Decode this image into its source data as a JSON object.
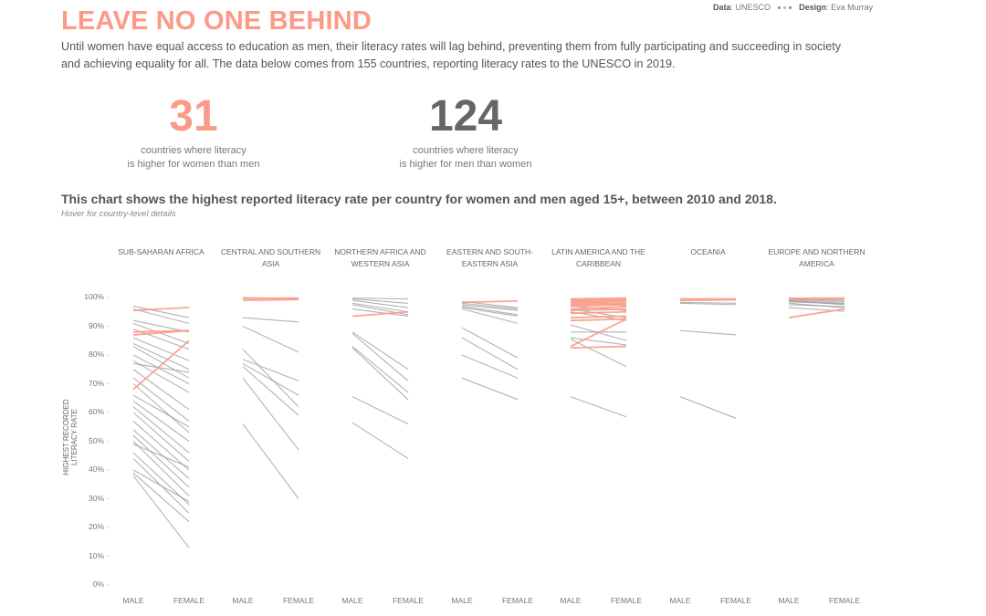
{
  "header": {
    "title": "LEAVE NO ONE BEHIND",
    "credits": {
      "data_label": "Data",
      "data_value": "UNESCO",
      "design_label": "Design",
      "design_value": "Eva Murray"
    },
    "intro_line1": "Until women have equal access to education as men, their literacy rates will lag behind, preventing them from fully participating and succeeding in society",
    "intro_line2": "and achieving equality for all. The data below comes from 155 countries, reporting literacy rates to the UNESCO in 2019."
  },
  "kpis": {
    "women_higher": {
      "value": "31",
      "label_line1": "countries where literacy",
      "label_line2": "is higher for women than men"
    },
    "men_higher": {
      "value": "124",
      "label_line1": "countries where literacy",
      "label_line2": "is higher for men than women"
    }
  },
  "chart": {
    "title": "This chart shows the highest reported literacy rate per country for women and men aged 15+, between 2010 and 2018.",
    "subtitle": "Hover for country-level details"
  },
  "colors": {
    "women_higher": "#fc9a88",
    "men_higher": "#9a9a9a",
    "title": "#fc9a88",
    "kpi_men": "#666666"
  },
  "chart_data": {
    "type": "line",
    "subtype": "slope",
    "title": "This chart shows the highest reported literacy rate per country for women and men aged 15+, between 2010 and 2018.",
    "subtitle": "Hover for country-level details",
    "xlabel": "",
    "ylabel": "HIGHEST RECORDED LITERACY RATE",
    "ylim": [
      0,
      100
    ],
    "yticks": [
      "100%",
      "90%",
      "80%",
      "70%",
      "60%",
      "50%",
      "40%",
      "30%",
      "20%",
      "10%",
      "0%"
    ],
    "x": [
      "MALE",
      "FEMALE"
    ],
    "grid": false,
    "legend": "none (pink = literacy higher for women, grey = higher for men)",
    "panels": [
      {
        "region": "SUB-SAHARAN AFRICA",
        "series": [
          {
            "male": 95.5,
            "female": 96.5,
            "women_higher": true
          },
          {
            "male": 88,
            "female": 88.5,
            "women_higher": true
          },
          {
            "male": 87,
            "female": 88.5,
            "women_higher": true
          },
          {
            "male": 68,
            "female": 85,
            "women_higher": true
          },
          {
            "male": 97,
            "female": 93,
            "women_higher": false
          },
          {
            "male": 96,
            "female": 91,
            "women_higher": false
          },
          {
            "male": 92,
            "female": 88,
            "women_higher": false
          },
          {
            "male": 91,
            "female": 84,
            "women_higher": false
          },
          {
            "male": 89,
            "female": 82,
            "women_higher": false
          },
          {
            "male": 86,
            "female": 78,
            "women_higher": false
          },
          {
            "male": 84,
            "female": 75,
            "women_higher": false
          },
          {
            "male": 83,
            "female": 72,
            "women_higher": false
          },
          {
            "male": 80,
            "female": 70,
            "women_higher": false
          },
          {
            "male": 78,
            "female": 67,
            "women_higher": false
          },
          {
            "male": 77,
            "female": 74,
            "women_higher": false
          },
          {
            "male": 75,
            "female": 61,
            "women_higher": false
          },
          {
            "male": 72,
            "female": 57,
            "women_higher": false
          },
          {
            "male": 70,
            "female": 53,
            "women_higher": false
          },
          {
            "male": 66,
            "female": 55,
            "women_higher": false
          },
          {
            "male": 64,
            "female": 50,
            "women_higher": false
          },
          {
            "male": 62,
            "female": 46,
            "women_higher": false
          },
          {
            "male": 60,
            "female": 43,
            "women_higher": false
          },
          {
            "male": 57,
            "female": 40,
            "women_higher": false
          },
          {
            "male": 54,
            "female": 37,
            "women_higher": false
          },
          {
            "male": 52,
            "female": 34,
            "women_higher": false
          },
          {
            "male": 50,
            "female": 31,
            "women_higher": false
          },
          {
            "male": 49,
            "female": 41,
            "women_higher": false
          },
          {
            "male": 46,
            "female": 28,
            "women_higher": false
          },
          {
            "male": 44,
            "female": 25,
            "women_higher": false
          },
          {
            "male": 40,
            "female": 29,
            "women_higher": false
          },
          {
            "male": 39,
            "female": 22,
            "women_higher": false
          },
          {
            "male": 38,
            "female": 13,
            "women_higher": false
          }
        ]
      },
      {
        "region": "CENTRAL AND SOUTHERN ASIA",
        "series": [
          {
            "male": 99.7,
            "female": 99.8,
            "women_higher": true
          },
          {
            "male": 99,
            "female": 99.3,
            "women_higher": true
          },
          {
            "male": 100,
            "female": 99.6,
            "women_higher": false
          },
          {
            "male": 93,
            "female": 91.5,
            "women_higher": false
          },
          {
            "male": 90,
            "female": 81,
            "women_higher": false
          },
          {
            "male": 82,
            "female": 62,
            "women_higher": false
          },
          {
            "male": 78.5,
            "female": 71,
            "women_higher": false
          },
          {
            "male": 77,
            "female": 66,
            "women_higher": false
          },
          {
            "male": 76,
            "female": 59,
            "women_higher": false
          },
          {
            "male": 72,
            "female": 47,
            "women_higher": false
          },
          {
            "male": 56,
            "female": 30,
            "women_higher": false
          }
        ]
      },
      {
        "region": "NORTHERN AFRICA AND WESTERN ASIA",
        "series": [
          {
            "male": 93.5,
            "female": 95,
            "women_higher": true
          },
          {
            "male": 99.8,
            "female": 99.5,
            "women_higher": false
          },
          {
            "male": 99.5,
            "female": 98,
            "women_higher": false
          },
          {
            "male": 99,
            "female": 96.5,
            "women_higher": false
          },
          {
            "male": 98,
            "female": 95,
            "women_higher": false
          },
          {
            "male": 97.5,
            "female": 94,
            "women_higher": false
          },
          {
            "male": 96,
            "female": 93.5,
            "women_higher": false
          },
          {
            "male": 88,
            "female": 75,
            "women_higher": false
          },
          {
            "male": 87.5,
            "female": 71,
            "women_higher": false
          },
          {
            "male": 83,
            "female": 67,
            "women_higher": false
          },
          {
            "male": 82.5,
            "female": 64.5,
            "women_higher": false
          },
          {
            "male": 65.5,
            "female": 56,
            "women_higher": false
          },
          {
            "male": 56.5,
            "female": 44,
            "women_higher": false
          }
        ]
      },
      {
        "region": "EASTERN AND SOUTH-EASTERN ASIA",
        "series": [
          {
            "male": 98.3,
            "female": 98.8,
            "women_higher": true
          },
          {
            "male": 98.6,
            "female": 96.5,
            "women_higher": false
          },
          {
            "male": 98,
            "female": 96,
            "women_higher": false
          },
          {
            "male": 97.5,
            "female": 95.5,
            "women_higher": false
          },
          {
            "male": 97,
            "female": 94,
            "women_higher": false
          },
          {
            "male": 96.5,
            "female": 93.5,
            "women_higher": false
          },
          {
            "male": 96,
            "female": 91,
            "women_higher": false
          },
          {
            "male": 89.5,
            "female": 79,
            "women_higher": false
          },
          {
            "male": 86,
            "female": 75,
            "women_higher": false
          },
          {
            "male": 80,
            "female": 72,
            "women_higher": false
          },
          {
            "male": 72,
            "female": 64.5,
            "women_higher": false
          }
        ]
      },
      {
        "region": "LATIN AMERICA AND THE CARIBBEAN",
        "series": [
          {
            "male": 99.5,
            "female": 99.8,
            "women_higher": true
          },
          {
            "male": 99,
            "female": 99.5,
            "women_higher": true
          },
          {
            "male": 98.5,
            "female": 99,
            "women_higher": true
          },
          {
            "male": 98,
            "female": 98.6,
            "women_higher": true
          },
          {
            "male": 97.5,
            "female": 98,
            "women_higher": true
          },
          {
            "male": 97,
            "female": 97.5,
            "women_higher": true
          },
          {
            "male": 96,
            "female": 96.8,
            "women_higher": true
          },
          {
            "male": 95.5,
            "female": 96,
            "women_higher": true
          },
          {
            "male": 94.5,
            "female": 95,
            "women_higher": true
          },
          {
            "male": 93,
            "female": 93.5,
            "women_higher": true
          },
          {
            "male": 92,
            "female": 92.5,
            "women_higher": true
          },
          {
            "male": 83,
            "female": 92.5,
            "women_higher": true
          },
          {
            "male": 82.5,
            "female": 83,
            "women_higher": true
          },
          {
            "male": 99.3,
            "female": 97,
            "women_higher": false
          },
          {
            "male": 97,
            "female": 95.5,
            "women_higher": false
          },
          {
            "male": 96,
            "female": 93,
            "women_higher": false
          },
          {
            "male": 95,
            "female": 92,
            "women_higher": false
          },
          {
            "male": 90.5,
            "female": 85,
            "women_higher": false
          },
          {
            "male": 88,
            "female": 88,
            "women_higher": false
          },
          {
            "male": 86,
            "female": 83.5,
            "women_higher": false
          },
          {
            "male": 85.5,
            "female": 76,
            "women_higher": false
          },
          {
            "male": 65.5,
            "female": 58.5,
            "women_higher": false
          }
        ]
      },
      {
        "region": "OCEANIA",
        "series": [
          {
            "male": 99.5,
            "female": 99.5,
            "women_higher": true
          },
          {
            "male": 99,
            "female": 99.2,
            "women_higher": true
          },
          {
            "male": 98.3,
            "female": 98,
            "women_higher": false
          },
          {
            "male": 98,
            "female": 97.5,
            "women_higher": false
          },
          {
            "male": 88.5,
            "female": 87,
            "women_higher": false
          },
          {
            "male": 65.5,
            "female": 58,
            "women_higher": false
          }
        ]
      },
      {
        "region": "EUROPE AND NORTHERN AMERICA",
        "series": [
          {
            "male": 99.7,
            "female": 99.8,
            "women_higher": true
          },
          {
            "male": 99.4,
            "female": 99.5,
            "women_higher": true
          },
          {
            "male": 93,
            "female": 96,
            "women_higher": true
          },
          {
            "male": 99.5,
            "female": 99,
            "women_higher": false
          },
          {
            "male": 99.3,
            "female": 98.5,
            "women_higher": false
          },
          {
            "male": 99,
            "female": 98,
            "women_higher": false
          },
          {
            "male": 98.8,
            "female": 97.5,
            "women_higher": false
          },
          {
            "male": 98.5,
            "female": 97.8,
            "women_higher": false
          },
          {
            "male": 98,
            "female": 96.5,
            "women_higher": false
          },
          {
            "male": 97.5,
            "female": 96.8,
            "women_higher": false
          },
          {
            "male": 96.5,
            "female": 95.2,
            "women_higher": false
          }
        ]
      }
    ]
  }
}
